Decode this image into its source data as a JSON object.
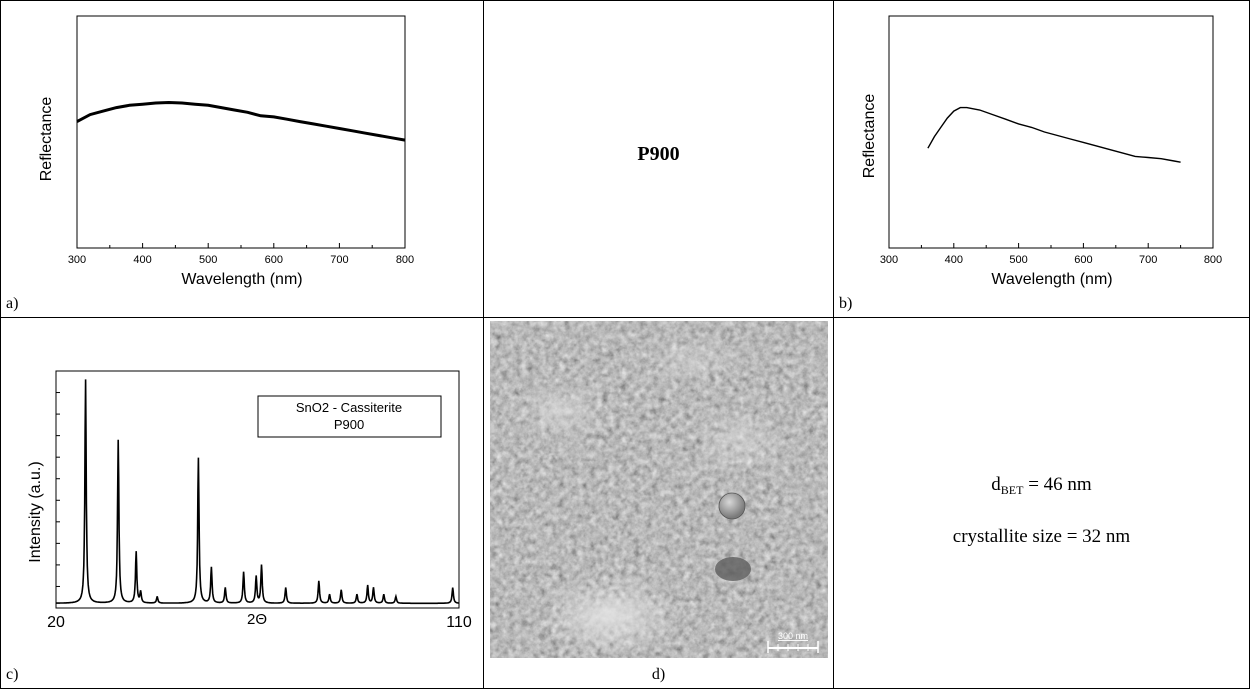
{
  "figure": {
    "center_title": "P900",
    "panel_labels": {
      "a": "a)",
      "b": "b)",
      "c": "c)",
      "d": "d)"
    },
    "bet": {
      "prefix": "d",
      "subscript": "BET",
      "suffix": " = 46 nm"
    },
    "crystallite": "crystallite size = 32 nm",
    "scale_bar_label": "300 nm"
  },
  "chart_data": [
    {
      "id": "a",
      "type": "line",
      "xlabel": "Wavelength (nm)",
      "ylabel": "Reflectance",
      "xlim": [
        300,
        800
      ],
      "ylim": [
        0,
        1
      ],
      "xticks": [
        300,
        400,
        500,
        600,
        700,
        800
      ],
      "grid": false,
      "series": [
        {
          "x": [
            300,
            320,
            340,
            360,
            380,
            400,
            420,
            440,
            460,
            480,
            500,
            520,
            540,
            560,
            580,
            600,
            620,
            640,
            660,
            680,
            700,
            720,
            740,
            760,
            780,
            800
          ],
          "y": [
            0.545,
            0.575,
            0.59,
            0.605,
            0.615,
            0.62,
            0.625,
            0.627,
            0.625,
            0.62,
            0.615,
            0.605,
            0.595,
            0.585,
            0.57,
            0.565,
            0.555,
            0.545,
            0.535,
            0.525,
            0.515,
            0.505,
            0.495,
            0.485,
            0.475,
            0.465
          ]
        }
      ]
    },
    {
      "id": "b",
      "type": "line",
      "xlabel": "Wavelength (nm)",
      "ylabel": "Reflectance",
      "xlim": [
        300,
        800
      ],
      "ylim": [
        0,
        1
      ],
      "xticks": [
        300,
        400,
        500,
        600,
        700,
        800
      ],
      "grid": false,
      "series": [
        {
          "x": [
            360,
            370,
            380,
            390,
            400,
            410,
            420,
            430,
            440,
            460,
            480,
            500,
            520,
            540,
            560,
            580,
            600,
            620,
            640,
            660,
            680,
            700,
            720,
            740,
            750
          ],
          "y": [
            0.43,
            0.48,
            0.52,
            0.56,
            0.59,
            0.605,
            0.605,
            0.6,
            0.595,
            0.575,
            0.555,
            0.535,
            0.52,
            0.5,
            0.485,
            0.47,
            0.455,
            0.44,
            0.425,
            0.41,
            0.395,
            0.39,
            0.385,
            0.375,
            0.37
          ]
        }
      ]
    },
    {
      "id": "c",
      "type": "line",
      "xlabel": "2Θ",
      "ylabel": "Intensity (a.u.)",
      "xlim": [
        20,
        110
      ],
      "ylim": [
        0,
        105
      ],
      "xticks": [
        20,
        110
      ],
      "legend": [
        "SnO2 - Cassiterite",
        "P900"
      ],
      "legend_position": "top-right",
      "grid": false,
      "peaks": [
        {
          "x": 26.6,
          "y": 100
        },
        {
          "x": 33.9,
          "y": 73
        },
        {
          "x": 37.9,
          "y": 23
        },
        {
          "x": 38.9,
          "y": 5
        },
        {
          "x": 42.6,
          "y": 3
        },
        {
          "x": 51.8,
          "y": 65
        },
        {
          "x": 54.7,
          "y": 16
        },
        {
          "x": 57.8,
          "y": 7
        },
        {
          "x": 61.9,
          "y": 14
        },
        {
          "x": 64.7,
          "y": 12
        },
        {
          "x": 65.9,
          "y": 17
        },
        {
          "x": 71.3,
          "y": 7
        },
        {
          "x": 78.7,
          "y": 10
        },
        {
          "x": 81.1,
          "y": 4
        },
        {
          "x": 83.7,
          "y": 6
        },
        {
          "x": 87.2,
          "y": 4
        },
        {
          "x": 89.6,
          "y": 8
        },
        {
          "x": 90.9,
          "y": 7
        },
        {
          "x": 93.2,
          "y": 4
        },
        {
          "x": 95.9,
          "y": 3
        },
        {
          "x": 108.6,
          "y": 7
        }
      ]
    }
  ]
}
